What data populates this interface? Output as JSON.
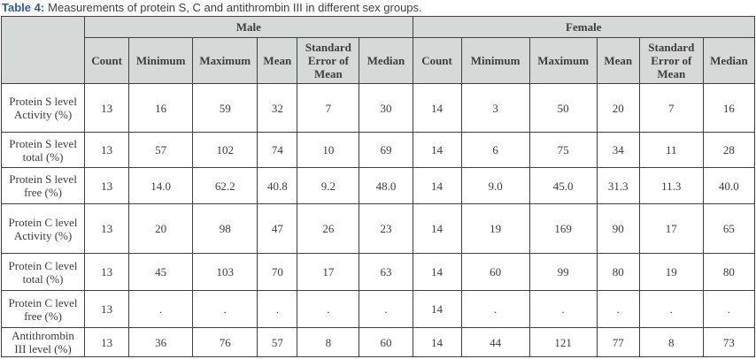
{
  "caption": {
    "label": "Table 4:",
    "text": "Measurements of protein S, C and antithrombin III in different sex groups."
  },
  "colors": {
    "caption_label_blue": "#2c5aa0",
    "header_background": "#d5dad8",
    "border": "#3f3f3f",
    "text": "#3d3d3d"
  },
  "table": {
    "groups": [
      "Male",
      "Female"
    ],
    "sub_headers": [
      "Count",
      "Minimum",
      "Maximum",
      "Mean",
      "Standard Error of Mean",
      "Median"
    ],
    "rows": [
      {
        "label": "Protein S level Activity (%)",
        "male": [
          "13",
          "16",
          "59",
          "32",
          "7",
          "30"
        ],
        "female": [
          "14",
          "3",
          "50",
          "20",
          "7",
          "16"
        ]
      },
      {
        "label": "Protein S level total (%)",
        "male": [
          "13",
          "57",
          "102",
          "74",
          "10",
          "69"
        ],
        "female": [
          "14",
          "6",
          "75",
          "34",
          "11",
          "28"
        ]
      },
      {
        "label": "Protein S level free (%)",
        "male": [
          "13",
          "14.0",
          "62.2",
          "40.8",
          "9.2",
          "48.0"
        ],
        "female": [
          "14",
          "9.0",
          "45.0",
          "31.3",
          "11.3",
          "40.0"
        ]
      },
      {
        "label": "Protein C level Activity (%)",
        "male": [
          "13",
          "20",
          "98",
          "47",
          "26",
          "23"
        ],
        "female": [
          "14",
          "19",
          "169",
          "90",
          "17",
          "65"
        ]
      },
      {
        "label": "Protein C level total (%)",
        "male": [
          "13",
          "45",
          "103",
          "70",
          "17",
          "63"
        ],
        "female": [
          "14",
          "60",
          "99",
          "80",
          "19",
          "80"
        ]
      },
      {
        "label": "Protein C level free (%)",
        "male": [
          "13",
          ".",
          ".",
          ".",
          ".",
          "."
        ],
        "female": [
          "14",
          ".",
          ".",
          ".",
          ".",
          "."
        ]
      },
      {
        "label": "Antithrombin III level (%)",
        "male": [
          "13",
          "36",
          "76",
          "57",
          "8",
          "60"
        ],
        "female": [
          "14",
          "44",
          "121",
          "77",
          "8",
          "73"
        ]
      }
    ]
  }
}
